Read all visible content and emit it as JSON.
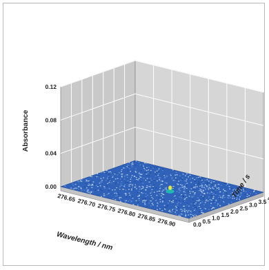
{
  "chart_data": {
    "type": "surface3d",
    "title": "",
    "xlabel": "Wavelength / nm",
    "ylabel": "Absorbance",
    "zlabel": "Time / s",
    "x_ticks": [
      "276.65",
      "276.70",
      "276.75",
      "276.80",
      "276.85",
      "276.90"
    ],
    "y_ticks": [
      "0.00",
      "0.04",
      "0.08",
      "0.12"
    ],
    "z_ticks": [
      "0.0",
      "0.5",
      "1.0",
      "1.5",
      "2.0",
      "2.5",
      "3.0",
      "3.5",
      "4.0"
    ],
    "xlim": [
      276.63,
      276.95
    ],
    "ylim": [
      0,
      0.12
    ],
    "zlim": [
      0,
      4.0
    ],
    "grid": true,
    "baseline_absorbance": 0.0,
    "peak": {
      "wavelength": 276.81,
      "time": 2.0,
      "absorbance": 0.006
    },
    "colors": {
      "surface": "#2f62b8",
      "surface_dark": "#1d4696",
      "noise_light": "#cfe0f5",
      "peak_mid": "#22b8b0",
      "peak_top": "#e6e83a",
      "wall": "#d2d2d2",
      "wall_grid": "#ffffff",
      "floor_side": "#b8b8b8"
    }
  }
}
